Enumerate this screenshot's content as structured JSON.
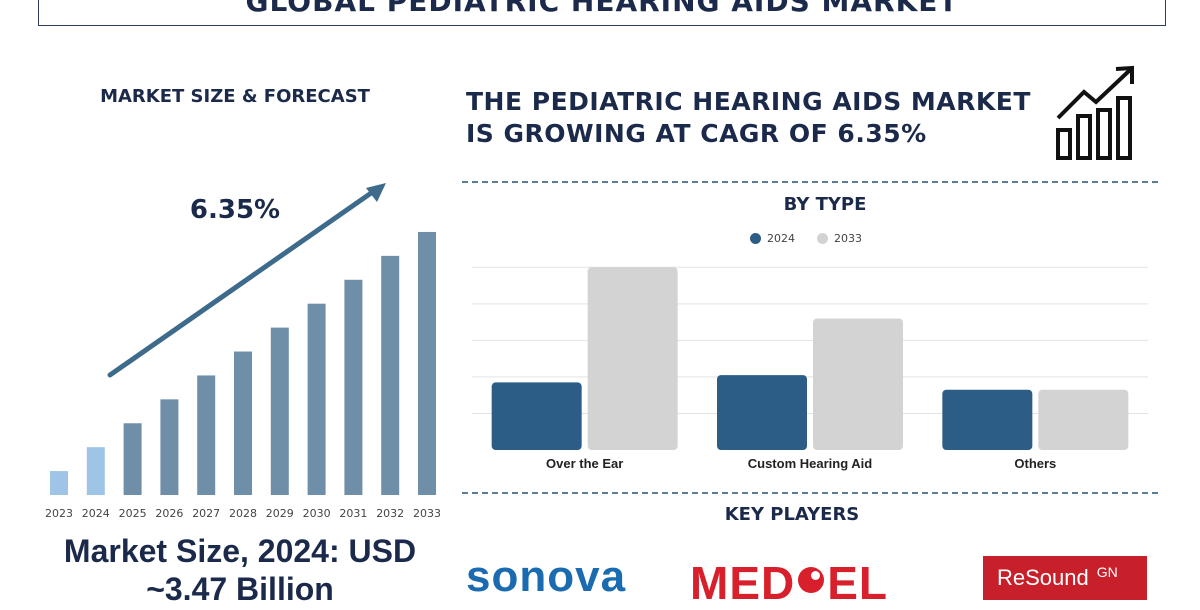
{
  "header": {
    "title": "GLOBAL PEDIATRIC HEARING AIDS MARKET"
  },
  "left_panel": {
    "heading": "MARKET SIZE & FORECAST",
    "cagr_label": "6.35%",
    "market_size_line1": "Market Size, 2024: USD",
    "market_size_line2": "~3.47 Billion"
  },
  "right_panel": {
    "headline_line1": "THE PEDIATRIC HEARING AIDS MARKET",
    "headline_line2": "IS GROWING AT CAGR OF 6.35%",
    "by_type_heading": "BY TYPE",
    "key_players_heading": "KEY PLAYERS",
    "icon": "growth-chart-icon"
  },
  "key_players": {
    "sonova": "sonova",
    "medel_left": "MED",
    "medel_right": "EL",
    "resound": "ReSound",
    "resound_suffix": "GN"
  },
  "colors": {
    "navy_text": "#1b2a4a",
    "series_2024": "#2c5d87",
    "series_2033": "#d3d3d3",
    "forecast_bar": "#6f8fa9",
    "history_bar": "#9ec4e6",
    "arrow": "#3e6b8c"
  },
  "chart_data": [
    {
      "type": "bar",
      "categories": [
        "2023",
        "2024",
        "2025",
        "2026",
        "2027",
        "2028",
        "2029",
        "2030",
        "2031",
        "2032",
        "2033"
      ],
      "values": [
        1.0,
        2.0,
        3.0,
        4.0,
        5.0,
        6.0,
        7.0,
        8.0,
        9.0,
        10.0,
        11.0
      ],
      "highlight_categories": [
        "2023",
        "2024"
      ],
      "title": "MARKET SIZE & FORECAST",
      "annotation": "6.35%",
      "ylim": [
        0,
        11.5
      ]
    },
    {
      "type": "bar",
      "title": "BY TYPE",
      "categories": [
        "Over the Ear",
        "Custom Hearing Aid",
        "Others"
      ],
      "series": [
        {
          "name": "2024",
          "values": [
            1.85,
            2.05,
            1.65
          ]
        },
        {
          "name": "2033",
          "values": [
            5.0,
            3.6,
            1.65
          ]
        }
      ],
      "ylim": [
        0,
        5.2
      ],
      "grid": true,
      "legend": "top-center"
    }
  ]
}
